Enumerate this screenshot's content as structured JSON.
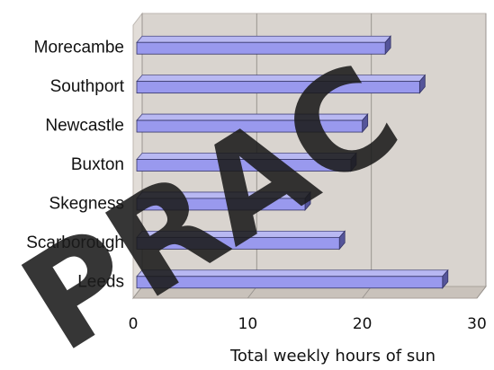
{
  "chart_data": {
    "type": "bar",
    "orientation": "horizontal",
    "style": "3d",
    "categories": [
      "Morecambe",
      "Southport",
      "Newcastle",
      "Buxton",
      "Skegness",
      "Scarborough",
      "Leeds"
    ],
    "values": [
      22,
      25,
      20,
      19,
      15,
      18,
      27
    ],
    "xlabel": "Total weekly hours of sun",
    "ylabel": "",
    "xlim": [
      0,
      30
    ],
    "x_ticks": [
      "0",
      "10",
      "20",
      "30"
    ],
    "grid": true,
    "legend": "none",
    "colors": {
      "bar_face": "#9999ee",
      "bar_top": "#b8b8f2",
      "bar_side": "#55559a",
      "wall": "#d9d4cf",
      "wall_left": "#e2ddd8",
      "floor": "#c9c2bb",
      "grid": "#9a9590"
    }
  },
  "watermark": {
    "text": "PRAC",
    "color": "#1a1a1a"
  }
}
